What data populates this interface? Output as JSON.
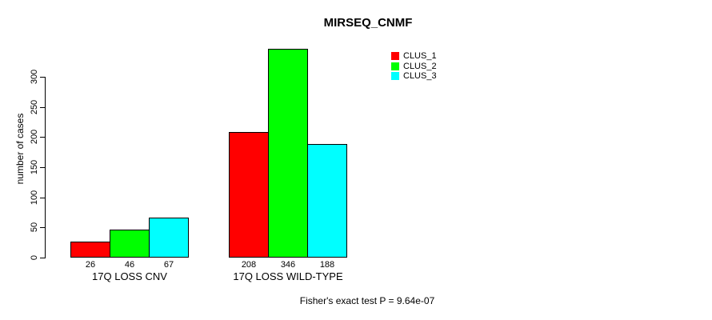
{
  "chart_data": {
    "type": "bar",
    "title": "MIRSEQ_CNMF",
    "ylabel": "number of cases",
    "xlabel": "",
    "categories": [
      "17Q LOSS CNV",
      "17Q LOSS WILD-TYPE"
    ],
    "series": [
      {
        "name": "CLUS_1",
        "color": "#ff0000",
        "values": [
          26,
          208
        ]
      },
      {
        "name": "CLUS_2",
        "color": "#00ff00",
        "values": [
          46,
          346
        ]
      },
      {
        "name": "CLUS_3",
        "color": "#00ffff",
        "values": [
          67,
          188
        ]
      }
    ],
    "y_ticks": [
      0,
      50,
      100,
      150,
      200,
      250,
      300
    ],
    "ylim": [
      0,
      300
    ],
    "grid": false,
    "bar_value_labels_shown": true,
    "legend_position": "top-right",
    "legend_entries": [
      "CLUS_1",
      "CLUS_2",
      "CLUS_3"
    ],
    "footnote": "Fisher's exact test P = 9.64e-07"
  }
}
